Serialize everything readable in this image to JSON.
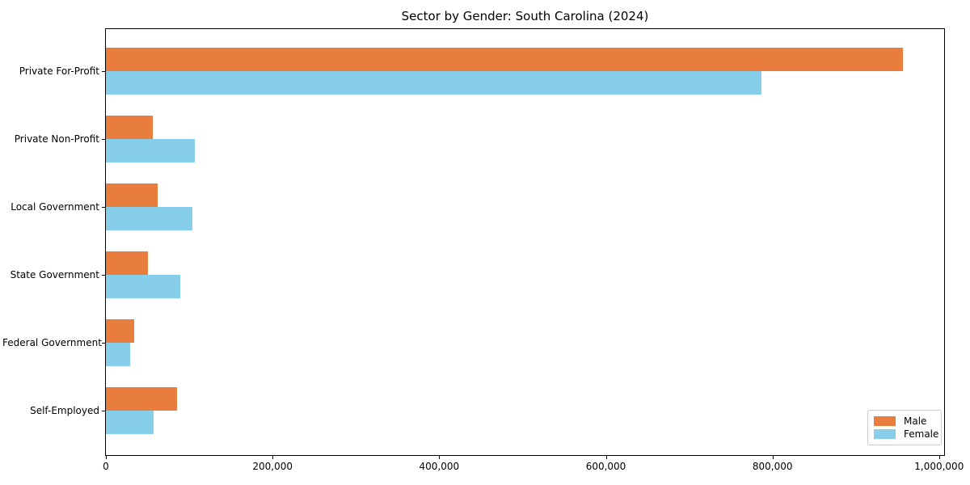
{
  "figure": {
    "background": "#ffffff"
  },
  "chart_data": {
    "type": "bar",
    "orientation": "horizontal",
    "title": "Sector by Gender: South Carolina (2024)",
    "categories": [
      "Private For-Profit",
      "Private Non-Profit",
      "Local Government",
      "State Government",
      "Federal Government",
      "Self-Employed"
    ],
    "series": [
      {
        "name": "Male",
        "color": "#e87d3e",
        "values": [
          956000,
          56000,
          62000,
          50000,
          34000,
          85000
        ]
      },
      {
        "name": "Female",
        "color": "#87ceeb",
        "values": [
          787000,
          107000,
          104000,
          89000,
          29000,
          57000
        ]
      }
    ],
    "xlabel": "",
    "ylabel": "",
    "xlim": [
      0,
      1006000
    ],
    "xticks": {
      "values": [
        0,
        200000,
        400000,
        600000,
        800000,
        1000000
      ],
      "labels": [
        "0",
        "200,000",
        "400,000",
        "600,000",
        "800,000",
        "1,000,000"
      ]
    },
    "grid": false,
    "legend": {
      "position": "lower right"
    },
    "axis_color": "#000000"
  }
}
